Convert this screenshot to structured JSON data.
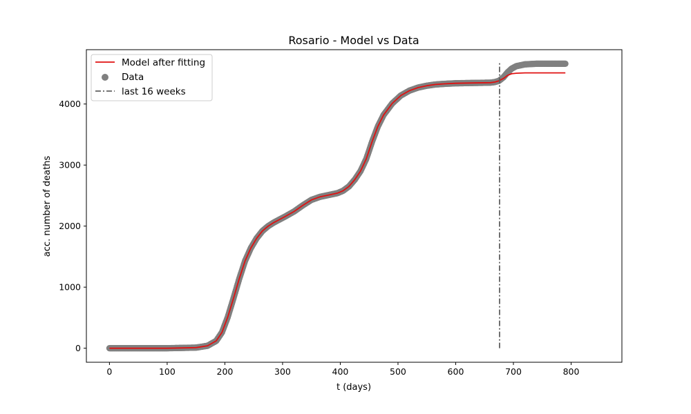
{
  "chart_data": {
    "type": "line",
    "title": "Rosario - Model vs Data",
    "xlabel": "t (days)",
    "ylabel": "acc. number of deaths",
    "xlim": [
      -40,
      888
    ],
    "ylim": [
      -230,
      4890
    ],
    "xticks": [
      0,
      100,
      200,
      300,
      400,
      500,
      600,
      700,
      800
    ],
    "yticks": [
      0,
      1000,
      2000,
      3000,
      4000
    ],
    "grid": false,
    "legend": {
      "placement": "top-left",
      "entries": [
        "Model after fitting",
        "Data",
        "last 16 weeks"
      ]
    },
    "colors": {
      "model": "#e01010",
      "data": "#808080",
      "vline": "#606060"
    },
    "model": {
      "name": "Model after fitting",
      "x": [
        0,
        100,
        150,
        170,
        185,
        195,
        205,
        215,
        225,
        235,
        245,
        255,
        265,
        275,
        285,
        295,
        305,
        320,
        335,
        350,
        365,
        380,
        395,
        405,
        415,
        425,
        435,
        445,
        455,
        465,
        475,
        490,
        505,
        520,
        535,
        550,
        565,
        580,
        600,
        630,
        660,
        668,
        675,
        683,
        690,
        697,
        705,
        720,
        760,
        790
      ],
      "y": [
        0,
        0,
        10,
        40,
        120,
        260,
        510,
        820,
        1140,
        1430,
        1640,
        1800,
        1920,
        2000,
        2060,
        2110,
        2160,
        2240,
        2340,
        2430,
        2480,
        2510,
        2540,
        2580,
        2650,
        2760,
        2900,
        3100,
        3380,
        3630,
        3820,
        4010,
        4140,
        4220,
        4270,
        4300,
        4320,
        4330,
        4340,
        4345,
        4350,
        4360,
        4380,
        4420,
        4470,
        4495,
        4505,
        4510,
        4510,
        4510
      ]
    },
    "data": {
      "name": "Data",
      "x": [
        0,
        100,
        150,
        170,
        185,
        195,
        205,
        215,
        225,
        235,
        245,
        255,
        265,
        275,
        285,
        295,
        305,
        320,
        335,
        350,
        365,
        380,
        395,
        405,
        415,
        425,
        435,
        445,
        455,
        465,
        475,
        490,
        505,
        520,
        535,
        550,
        565,
        580,
        600,
        630,
        660,
        668,
        675,
        683,
        690,
        697,
        705,
        720,
        740,
        760,
        790
      ],
      "y": [
        0,
        0,
        10,
        40,
        120,
        260,
        510,
        820,
        1140,
        1430,
        1640,
        1800,
        1920,
        2000,
        2060,
        2110,
        2160,
        2240,
        2340,
        2430,
        2480,
        2510,
        2540,
        2580,
        2650,
        2760,
        2900,
        3100,
        3380,
        3630,
        3820,
        4010,
        4140,
        4220,
        4270,
        4300,
        4320,
        4330,
        4340,
        4345,
        4350,
        4360,
        4380,
        4440,
        4520,
        4580,
        4620,
        4650,
        4660,
        4660,
        4660
      ]
    },
    "vline": {
      "name": "last 16 weeks",
      "x": 676,
      "y_range": [
        0,
        4670
      ]
    }
  }
}
